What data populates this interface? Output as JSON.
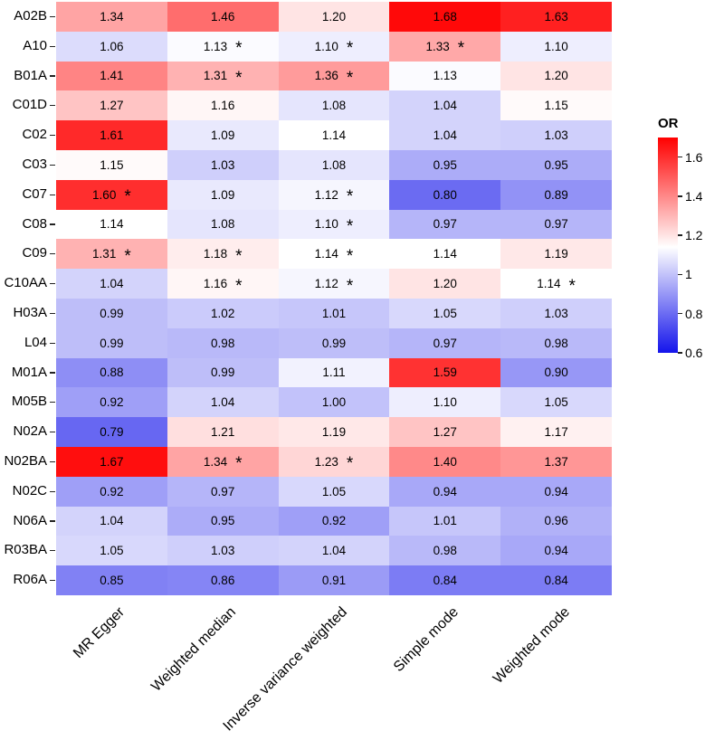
{
  "chart_data": {
    "type": "heatmap",
    "title": "",
    "legend_title": "OR",
    "columns": [
      "MR Egger",
      "Weighted median",
      "Inverse variance weighted",
      "Simple mode",
      "Weighted mode"
    ],
    "rows": [
      "A02B",
      "A10",
      "B01A",
      "C01D",
      "C02",
      "C03",
      "C07",
      "C08",
      "C09",
      "C10AA",
      "H03A",
      "L04",
      "M01A",
      "M05B",
      "N02A",
      "N02BA",
      "N02C",
      "N06A",
      "R03BA",
      "R06A"
    ],
    "values": [
      [
        1.34,
        1.46,
        1.2,
        1.68,
        1.63
      ],
      [
        1.06,
        1.13,
        1.1,
        1.33,
        1.1
      ],
      [
        1.41,
        1.31,
        1.36,
        1.13,
        1.2
      ],
      [
        1.27,
        1.16,
        1.08,
        1.04,
        1.15
      ],
      [
        1.61,
        1.09,
        1.14,
        1.04,
        1.03
      ],
      [
        1.15,
        1.03,
        1.08,
        0.95,
        0.95
      ],
      [
        1.6,
        1.09,
        1.12,
        0.8,
        0.89
      ],
      [
        1.14,
        1.08,
        1.1,
        0.97,
        0.97
      ],
      [
        1.31,
        1.18,
        1.14,
        1.14,
        1.19
      ],
      [
        1.04,
        1.16,
        1.12,
        1.2,
        1.14
      ],
      [
        0.99,
        1.02,
        1.01,
        1.05,
        1.03
      ],
      [
        0.99,
        0.98,
        0.99,
        0.97,
        0.98
      ],
      [
        0.88,
        0.99,
        1.11,
        1.59,
        0.9
      ],
      [
        0.92,
        1.04,
        1.0,
        1.1,
        1.05
      ],
      [
        0.79,
        1.21,
        1.19,
        1.27,
        1.17
      ],
      [
        1.67,
        1.34,
        1.23,
        1.4,
        1.37
      ],
      [
        0.92,
        0.97,
        1.05,
        0.94,
        0.94
      ],
      [
        1.04,
        0.95,
        0.92,
        1.01,
        0.96
      ],
      [
        1.05,
        1.03,
        1.04,
        0.98,
        0.94
      ],
      [
        0.85,
        0.86,
        0.91,
        0.84,
        0.84
      ]
    ],
    "stars": [
      [
        0,
        0,
        0,
        0,
        0
      ],
      [
        0,
        1,
        1,
        1,
        0
      ],
      [
        0,
        1,
        1,
        0,
        0
      ],
      [
        0,
        0,
        0,
        0,
        0
      ],
      [
        0,
        0,
        0,
        0,
        0
      ],
      [
        0,
        0,
        0,
        0,
        0
      ],
      [
        1,
        0,
        1,
        0,
        0
      ],
      [
        0,
        0,
        1,
        0,
        0
      ],
      [
        1,
        1,
        1,
        0,
        0
      ],
      [
        0,
        1,
        1,
        0,
        1
      ],
      [
        0,
        0,
        0,
        0,
        0
      ],
      [
        0,
        0,
        0,
        0,
        0
      ],
      [
        0,
        0,
        0,
        0,
        0
      ],
      [
        0,
        0,
        0,
        0,
        0
      ],
      [
        0,
        0,
        0,
        0,
        0
      ],
      [
        0,
        1,
        1,
        0,
        0
      ],
      [
        0,
        0,
        0,
        0,
        0
      ],
      [
        0,
        0,
        0,
        0,
        0
      ],
      [
        0,
        0,
        0,
        0,
        0
      ],
      [
        0,
        0,
        0,
        0,
        0
      ]
    ],
    "star_symbol": "*",
    "colorbar": {
      "min": 0.6,
      "max": 1.7,
      "white_point": 1.14,
      "red": "#FF0000",
      "white": "#FFFFFF",
      "blue": "#1414EB",
      "ticks": [
        "1.6",
        "1.4",
        "1.2",
        "1",
        "0.8",
        "0.6"
      ],
      "tick_values": [
        1.6,
        1.4,
        1.2,
        1.0,
        0.8,
        0.6
      ]
    },
    "legend_position": "right",
    "grid": false
  }
}
